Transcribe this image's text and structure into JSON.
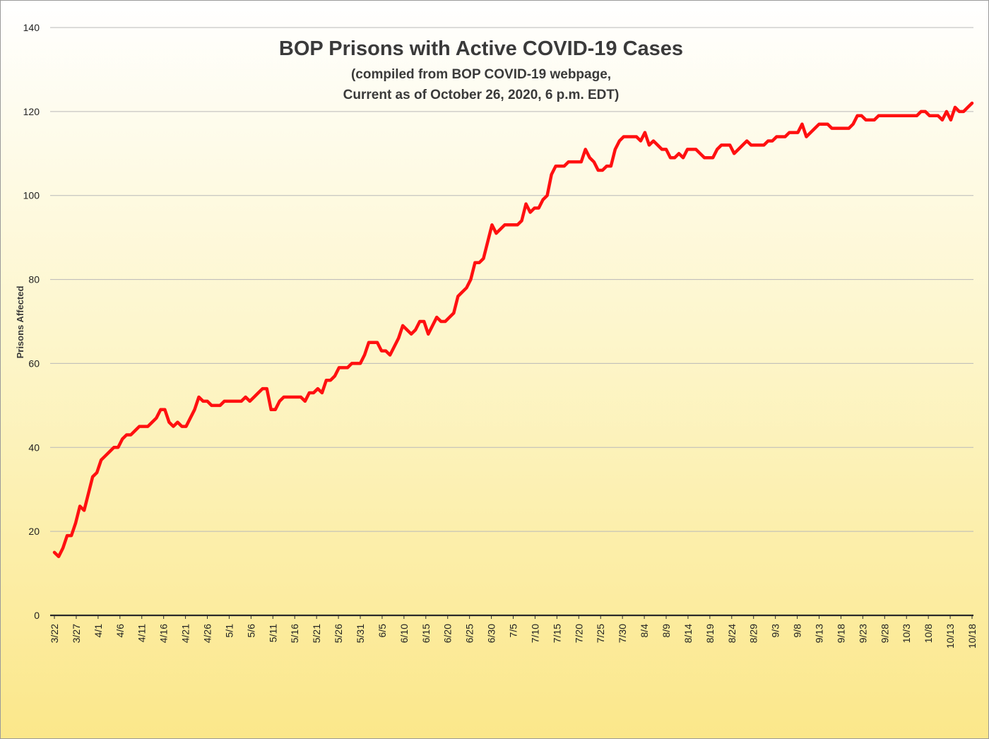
{
  "chart_data": {
    "type": "line",
    "title": "BOP Prisons with Active COVID-19 Cases",
    "subtitle_lines": [
      "(compiled from BOP COVID-19 webpage,",
      "Current as of October 26, 2020, 6 p.m. EDT)"
    ],
    "xlabel": "",
    "ylabel": "Prisons Affected",
    "ylim": [
      0,
      140
    ],
    "yticks": [
      0,
      20,
      40,
      60,
      80,
      100,
      120,
      140
    ],
    "grid": true,
    "x_start": "3/22",
    "x_end": "10/18",
    "xticks": [
      "3/22",
      "3/27",
      "4/1",
      "4/6",
      "4/11",
      "4/16",
      "4/21",
      "4/26",
      "5/1",
      "5/6",
      "5/11",
      "5/16",
      "5/21",
      "5/26",
      "5/31",
      "6/5",
      "6/10",
      "6/15",
      "6/20",
      "6/25",
      "6/30",
      "7/5",
      "7/10",
      "7/15",
      "7/20",
      "7/25",
      "7/30",
      "8/4",
      "8/9",
      "8/14",
      "8/19",
      "8/24",
      "8/29",
      "9/3",
      "9/8",
      "9/13",
      "9/18",
      "9/23",
      "9/28",
      "10/3",
      "10/8",
      "10/13",
      "10/18"
    ],
    "series": [
      {
        "color": "#ff1010",
        "values": [
          15,
          14,
          16,
          19,
          19,
          22,
          26,
          25,
          29,
          33,
          34,
          37,
          38,
          39,
          40,
          40,
          42,
          43,
          43,
          44,
          45,
          45,
          45,
          46,
          47,
          49,
          49,
          46,
          45,
          46,
          45,
          45,
          47,
          49,
          52,
          51,
          51,
          50,
          50,
          50,
          51,
          51,
          51,
          51,
          51,
          52,
          51,
          52,
          53,
          54,
          54,
          49,
          49,
          51,
          52,
          52,
          52,
          52,
          52,
          51,
          53,
          53,
          54,
          53,
          56,
          56,
          57,
          59,
          59,
          59,
          60,
          60,
          60,
          62,
          65,
          65,
          65,
          63,
          63,
          62,
          64,
          66,
          69,
          68,
          67,
          68,
          70,
          70,
          67,
          69,
          71,
          70,
          70,
          71,
          72,
          76,
          77,
          78,
          80,
          84,
          84,
          85,
          89,
          93,
          91,
          92,
          93,
          93,
          93,
          93,
          94,
          98,
          96,
          97,
          97,
          99,
          100,
          105,
          107,
          107,
          107,
          108,
          108,
          108,
          108,
          111,
          109,
          108,
          106,
          106,
          107,
          107,
          111,
          113,
          114,
          114,
          114,
          114,
          113,
          115,
          112,
          113,
          112,
          111,
          111,
          109,
          109,
          110,
          109,
          111,
          111,
          111,
          110,
          109,
          109,
          109,
          111,
          112,
          112,
          112,
          110,
          111,
          112,
          113,
          112,
          112,
          112,
          112,
          113,
          113,
          114,
          114,
          114,
          115,
          115,
          115,
          117,
          114,
          115,
          116,
          117,
          117,
          117,
          116,
          116,
          116,
          116,
          116,
          117,
          119,
          119,
          118,
          118,
          118,
          119,
          119,
          119,
          119,
          119,
          119,
          119,
          119,
          119,
          119,
          120,
          120,
          119,
          119,
          119,
          118,
          120,
          118,
          121,
          120,
          120,
          121,
          122
        ]
      }
    ]
  }
}
